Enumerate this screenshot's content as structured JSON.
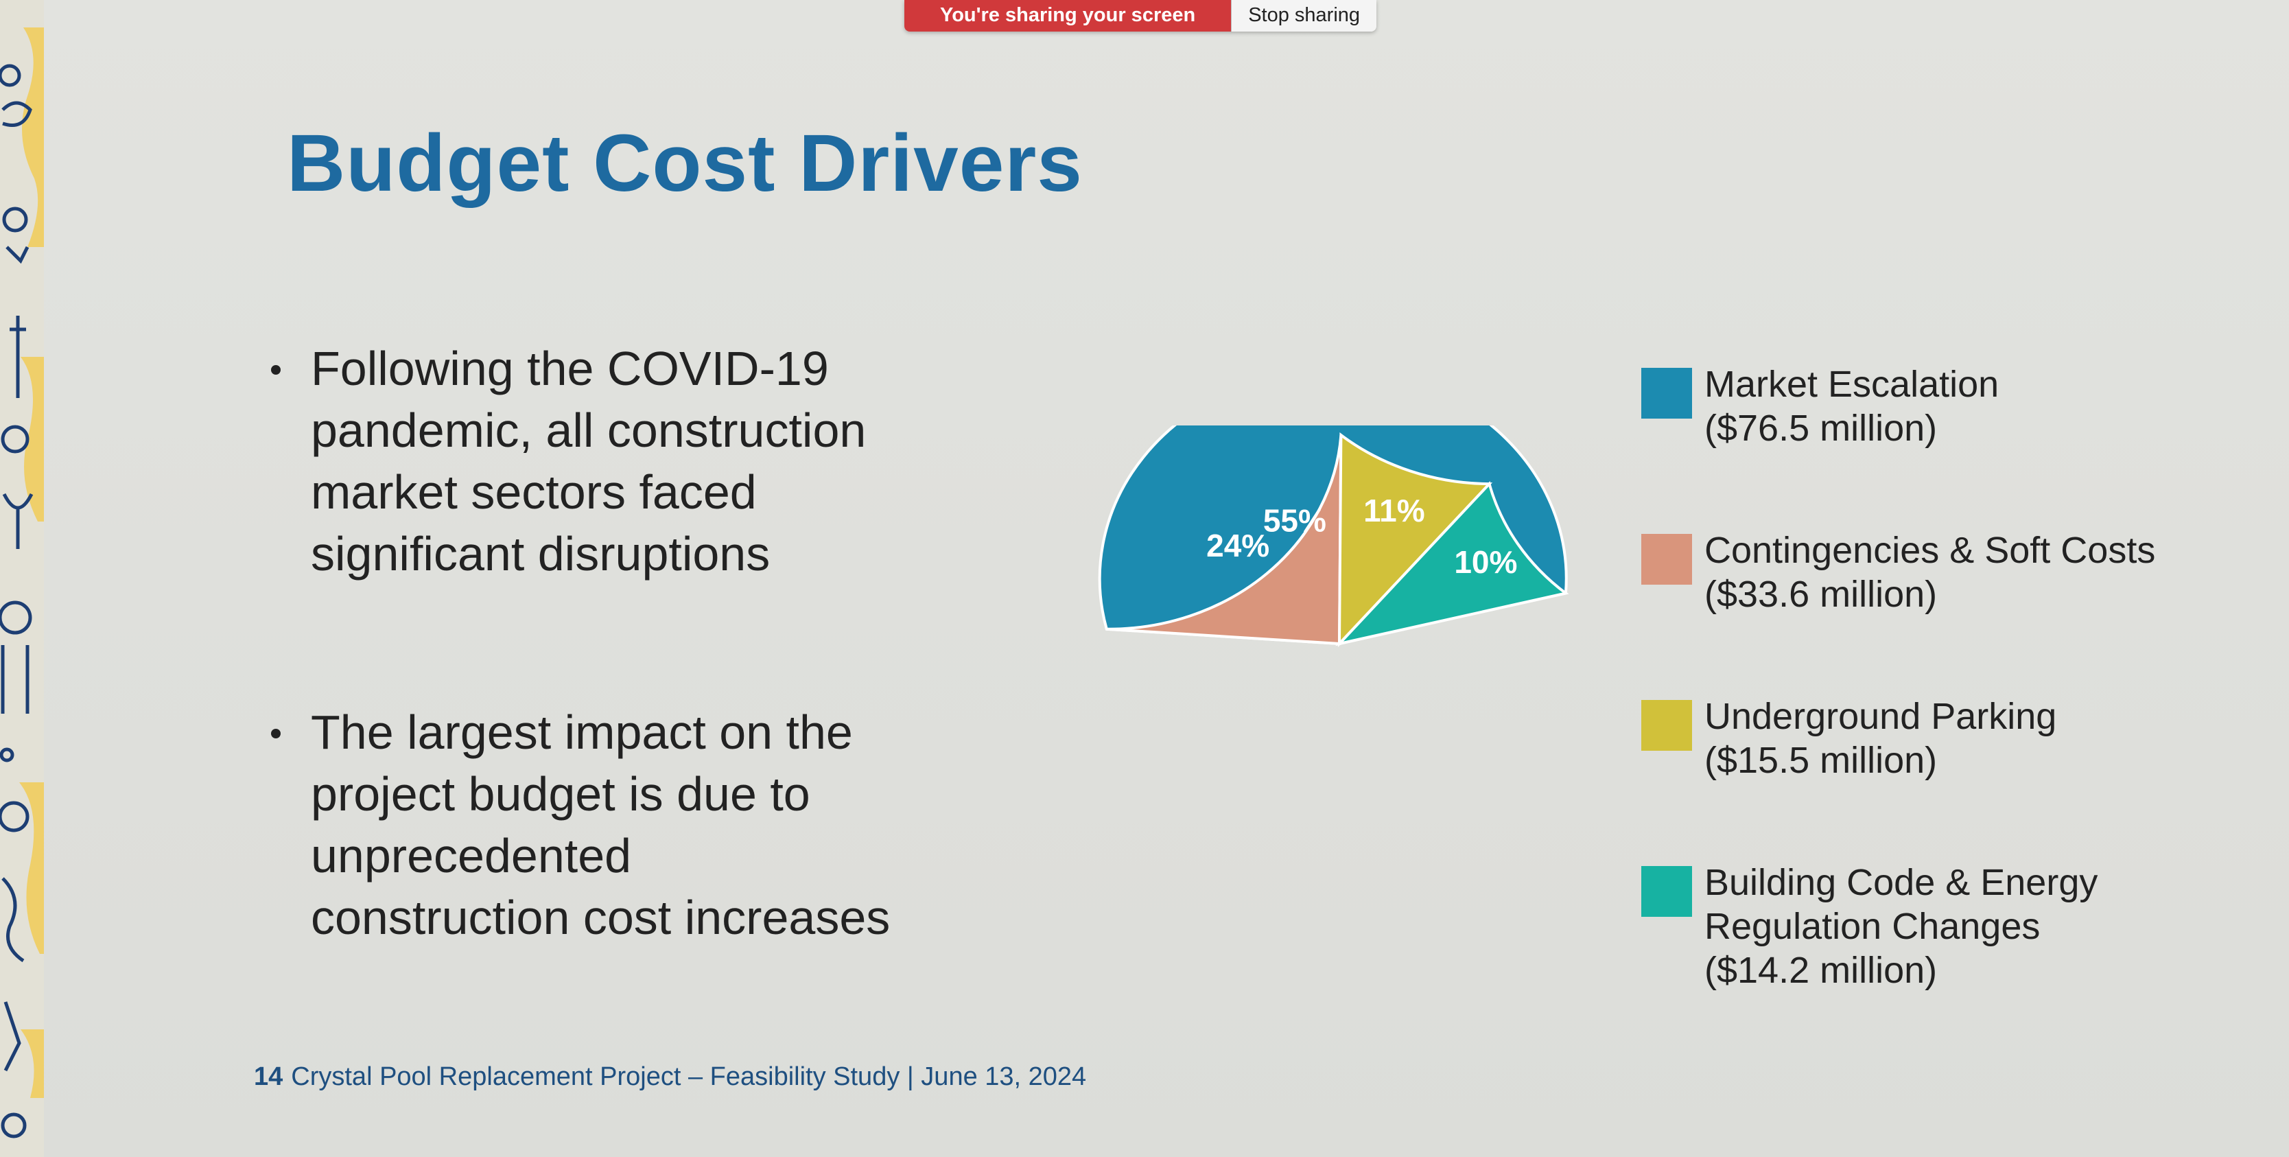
{
  "share_bar": {
    "status": "You're sharing your screen",
    "stop_label": "Stop sharing"
  },
  "slide": {
    "title": "Budget Cost Drivers",
    "bullets": [
      [
        "Following the COVID-19",
        "pandemic, all construction",
        "market sectors faced",
        "significant disruptions"
      ],
      [
        "The largest impact on the",
        "project budget is due to",
        "unprecedented",
        "construction cost increases"
      ]
    ],
    "footer": {
      "page_number": "14",
      "text": "Crystal Pool Replacement Project – Feasibility Study | June 13, 2024"
    }
  },
  "colors": {
    "title": "#1e6aa0",
    "market": "#1c8bb0",
    "contingencies": "#d9957c",
    "parking": "#d1c13a",
    "building": "#17b2a2"
  },
  "chart_data": {
    "type": "pie",
    "title": "",
    "categories": [
      "Market Escalation",
      "Contingencies & Soft Costs",
      "Underground Parking",
      "Building Code & Energy Regulation Changes"
    ],
    "values": [
      55,
      24,
      11,
      10
    ],
    "value_labels": [
      "55%",
      "24%",
      "11%",
      "10%"
    ],
    "amounts": [
      "($76.5 million)",
      "($33.6 million)",
      "($15.5 million)",
      "($14.2 million)"
    ],
    "legend_lines": [
      [
        "Market Escalation",
        "($76.5 million)"
      ],
      [
        "Contingencies & Soft Costs",
        "($33.6 million)"
      ],
      [
        "Underground Parking",
        "($15.5 million)"
      ],
      [
        "Building Code & Energy",
        "Regulation Changes",
        "($14.2 million)"
      ]
    ],
    "series_colors": [
      "#1c8bb0",
      "#d9957c",
      "#d1c13a",
      "#17b2a2"
    ],
    "legend_position": "right",
    "start_angle_deg": 14,
    "direction": "counterclockwise"
  }
}
